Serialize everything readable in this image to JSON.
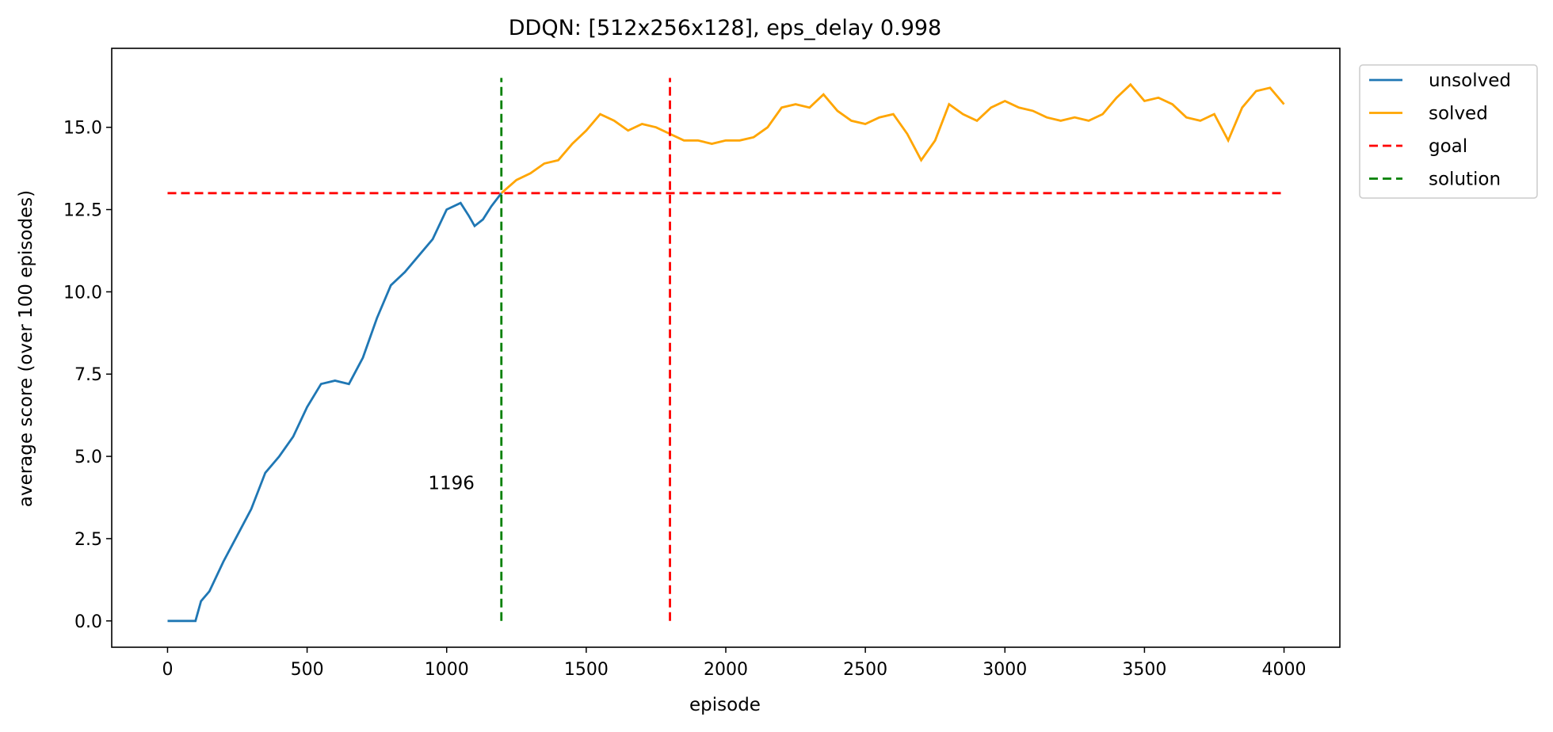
{
  "chart_data": {
    "type": "line",
    "title": "DDQN: [512x256x128], eps_delay 0.998",
    "xlabel": "episode",
    "ylabel": "average score (over 100 episodes)",
    "xlim": [
      -200,
      4200
    ],
    "ylim": [
      -0.8,
      17.4
    ],
    "xticks": [
      0,
      500,
      1000,
      1500,
      2000,
      2500,
      3000,
      3500,
      4000
    ],
    "xtick_labels": [
      "0",
      "500",
      "1000",
      "1500",
      "2000",
      "2500",
      "3000",
      "3500",
      "4000"
    ],
    "yticks": [
      0.0,
      2.5,
      5.0,
      7.5,
      10.0,
      12.5,
      15.0
    ],
    "ytick_labels": [
      "0.0",
      "2.5",
      "5.0",
      "7.5",
      "10.0",
      "12.5",
      "15.0"
    ],
    "grid": false,
    "legend_position": "outside-top-right",
    "series": [
      {
        "name": "unsolved",
        "color": "#1f77b4",
        "style": "solid",
        "x": [
          0,
          100,
          120,
          150,
          200,
          250,
          300,
          350,
          400,
          450,
          500,
          550,
          600,
          650,
          700,
          750,
          800,
          850,
          900,
          950,
          1000,
          1050,
          1080,
          1100,
          1130,
          1160,
          1196
        ],
        "y": [
          0.0,
          0.0,
          0.6,
          0.9,
          1.8,
          2.6,
          3.4,
          4.5,
          5.0,
          5.6,
          6.5,
          7.2,
          7.3,
          7.2,
          8.0,
          9.2,
          10.2,
          10.6,
          11.1,
          11.6,
          12.5,
          12.7,
          12.3,
          12.0,
          12.2,
          12.6,
          13.0
        ]
      },
      {
        "name": "solved",
        "color": "#ffa500",
        "style": "solid",
        "x": [
          1196,
          1250,
          1300,
          1350,
          1400,
          1450,
          1500,
          1550,
          1600,
          1650,
          1700,
          1750,
          1800,
          1850,
          1900,
          1950,
          2000,
          2050,
          2100,
          2150,
          2200,
          2250,
          2300,
          2350,
          2400,
          2450,
          2500,
          2550,
          2600,
          2650,
          2700,
          2750,
          2800,
          2850,
          2900,
          2950,
          3000,
          3050,
          3100,
          3150,
          3200,
          3250,
          3300,
          3350,
          3400,
          3450,
          3500,
          3550,
          3600,
          3650,
          3700,
          3750,
          3800,
          3850,
          3900,
          3950,
          4000
        ],
        "y": [
          13.0,
          13.4,
          13.6,
          13.9,
          14.0,
          14.5,
          14.9,
          15.4,
          15.2,
          14.9,
          15.1,
          15.0,
          14.8,
          14.6,
          14.6,
          14.5,
          14.6,
          14.6,
          14.7,
          15.0,
          15.6,
          15.7,
          15.6,
          16.0,
          15.5,
          15.2,
          15.1,
          15.3,
          15.4,
          14.8,
          14.0,
          14.6,
          15.7,
          15.4,
          15.2,
          15.6,
          15.8,
          15.6,
          15.5,
          15.3,
          15.2,
          15.3,
          15.2,
          15.4,
          15.9,
          16.3,
          15.8,
          15.9,
          15.7,
          15.3,
          15.2,
          15.4,
          14.6,
          15.6,
          16.1,
          16.2,
          15.7
        ]
      },
      {
        "name": "goal",
        "color": "#ff0000",
        "style": "dashed",
        "x": [
          0,
          4000
        ],
        "y": [
          13.0,
          13.0
        ]
      }
    ],
    "vlines": [
      {
        "name": "solution",
        "x": 1196,
        "ymin": 0,
        "ymax": 16.5,
        "color": "#008000",
        "style": "dashed"
      },
      {
        "name": "goal-marker",
        "x": 1800,
        "ymin": 0,
        "ymax": 16.5,
        "color": "#ff0000",
        "style": "dashed"
      }
    ],
    "annotations": [
      {
        "text": "1196",
        "x": 1100,
        "y": 4.0
      }
    ],
    "legend": [
      {
        "label": "unsolved",
        "color": "#1f77b4",
        "style": "solid"
      },
      {
        "label": "solved",
        "color": "#ffa500",
        "style": "solid"
      },
      {
        "label": "goal",
        "color": "#ff0000",
        "style": "dashed"
      },
      {
        "label": "solution",
        "color": "#008000",
        "style": "dashed"
      }
    ]
  }
}
